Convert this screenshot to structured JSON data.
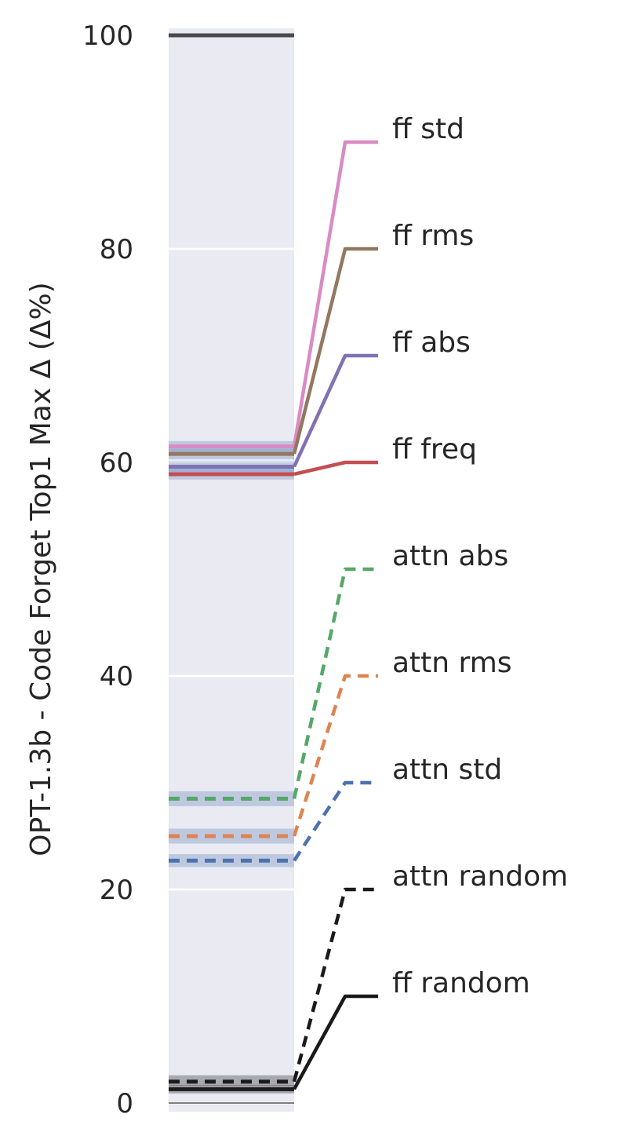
{
  "chart_data": {
    "type": "line",
    "ylabel": "OPT-1.3b - Code Forget Top1 Max Δ (Δ%)",
    "ylim": [
      0,
      100
    ],
    "yticks": [
      0,
      20,
      40,
      60,
      80,
      100
    ],
    "grid": true,
    "reference_line": {
      "value": 100,
      "color": "#4a4a4a"
    },
    "series": [
      {
        "name": "ff std",
        "value": 61.5,
        "band": [
          61.0,
          62.0
        ],
        "label_anchor": 90,
        "color": "#DA8BC3",
        "dashed": false
      },
      {
        "name": "ff rms",
        "value": 60.8,
        "band": [
          60.3,
          61.3
        ],
        "label_anchor": 80,
        "color": "#937860",
        "dashed": false
      },
      {
        "name": "ff abs",
        "value": 59.6,
        "band": [
          59.1,
          60.1
        ],
        "label_anchor": 70,
        "color": "#8172B3",
        "dashed": false
      },
      {
        "name": "ff freq",
        "value": 58.9,
        "band": [
          58.4,
          59.4
        ],
        "label_anchor": 60,
        "color": "#C44E52",
        "dashed": false
      },
      {
        "name": "attn abs",
        "value": 28.5,
        "band": [
          27.8,
          29.2
        ],
        "label_anchor": 50,
        "color": "#55A868",
        "dashed": true
      },
      {
        "name": "attn rms",
        "value": 25.0,
        "band": [
          24.3,
          25.7
        ],
        "label_anchor": 40,
        "color": "#DD8452",
        "dashed": true
      },
      {
        "name": "attn std",
        "value": 22.7,
        "band": [
          22.1,
          23.3
        ],
        "label_anchor": 30,
        "color": "#4C72B0",
        "dashed": true
      },
      {
        "name": "attn random",
        "value": 2.0,
        "band": [
          1.6,
          2.6
        ],
        "label_anchor": 20,
        "color": "#1a1a1a",
        "dashed": true
      },
      {
        "name": "ff random",
        "value": 1.3,
        "band": [
          0.9,
          1.7
        ],
        "label_anchor": 10,
        "color": "#1a1a1a",
        "dashed": false
      }
    ]
  }
}
